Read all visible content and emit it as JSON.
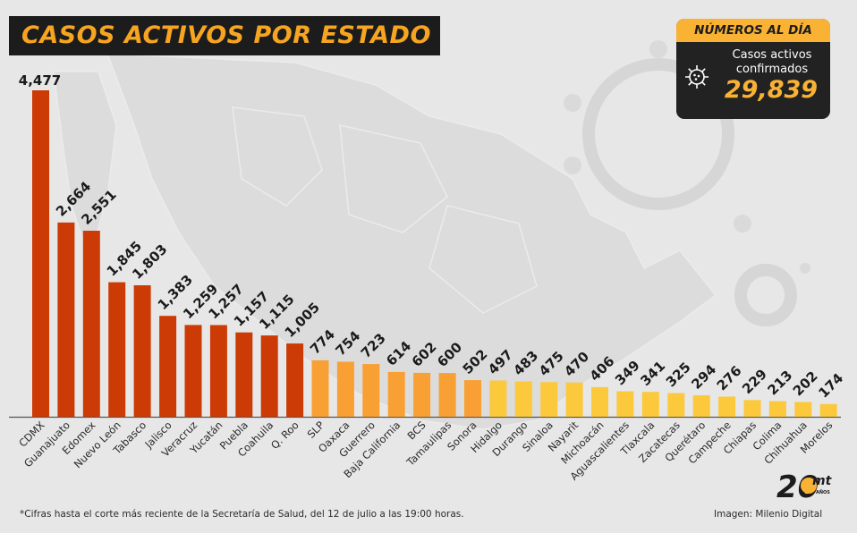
{
  "title": "CASOS ACTIVOS POR ESTADO",
  "stats": {
    "header": "NÚMEROS AL DÍA",
    "label": "Casos activos confirmados",
    "value": "29,839",
    "icon": "virus-icon"
  },
  "footnote": "*Cifras hasta el corte más reciente de la Secretaría de Salud, del 12 de julio a las 19:00 horas.",
  "credit": "Imagen: Milenio Digital",
  "logo": {
    "number": "20",
    "text": "mt",
    "subtext": "AÑOS"
  },
  "colors": {
    "high": "#cc3a05",
    "mid": "#f8a033",
    "low": "#fbc93b",
    "title_bg": "#1c1c1c",
    "accent": "#f9b233"
  },
  "chart_data": {
    "type": "bar",
    "title": "CASOS ACTIVOS POR ESTADO",
    "xlabel": "",
    "ylabel": "",
    "ylim": [
      0,
      4477
    ],
    "grid": false,
    "legend": "none",
    "categories": [
      "CDMX",
      "Guanajuato",
      "Edomex",
      "Nuevo León",
      "Tabasco",
      "Jalisco",
      "Veracruz",
      "Yucatán",
      "Puebla",
      "Coahuila",
      "Q. Roo",
      "SLP",
      "Oaxaca",
      "Guerrero",
      "Baja California",
      "BCS",
      "Tamaulipas",
      "Sonora",
      "Hidalgo",
      "Durango",
      "Sinaloa",
      "Nayarit",
      "Michoacán",
      "Aguascalientes",
      "Tlaxcala",
      "Zacatecas",
      "Querétaro",
      "Campeche",
      "Chiapas",
      "Colima",
      "Chihuahua",
      "Morelos"
    ],
    "values": [
      4477,
      2664,
      2551,
      1845,
      1803,
      1383,
      1259,
      1257,
      1157,
      1115,
      1005,
      774,
      754,
      723,
      614,
      602,
      600,
      502,
      497,
      483,
      475,
      470,
      406,
      349,
      341,
      325,
      294,
      276,
      229,
      213,
      202,
      174
    ],
    "value_labels": [
      "4,477",
      "2,664",
      "2,551",
      "1,845",
      "1,803",
      "1,383",
      "1,259",
      "1,257",
      "1,157",
      "1,115",
      "1,005",
      "774",
      "754",
      "723",
      "614",
      "602",
      "600",
      "502",
      "497",
      "483",
      "475",
      "470",
      "406",
      "349",
      "341",
      "325",
      "294",
      "276",
      "229",
      "213",
      "202",
      "174"
    ],
    "tiers": [
      "high",
      "high",
      "high",
      "high",
      "high",
      "high",
      "high",
      "high",
      "high",
      "high",
      "high",
      "mid",
      "mid",
      "mid",
      "mid",
      "mid",
      "mid",
      "mid",
      "low",
      "low",
      "low",
      "low",
      "low",
      "low",
      "low",
      "low",
      "low",
      "low",
      "low",
      "low",
      "low",
      "low"
    ]
  }
}
